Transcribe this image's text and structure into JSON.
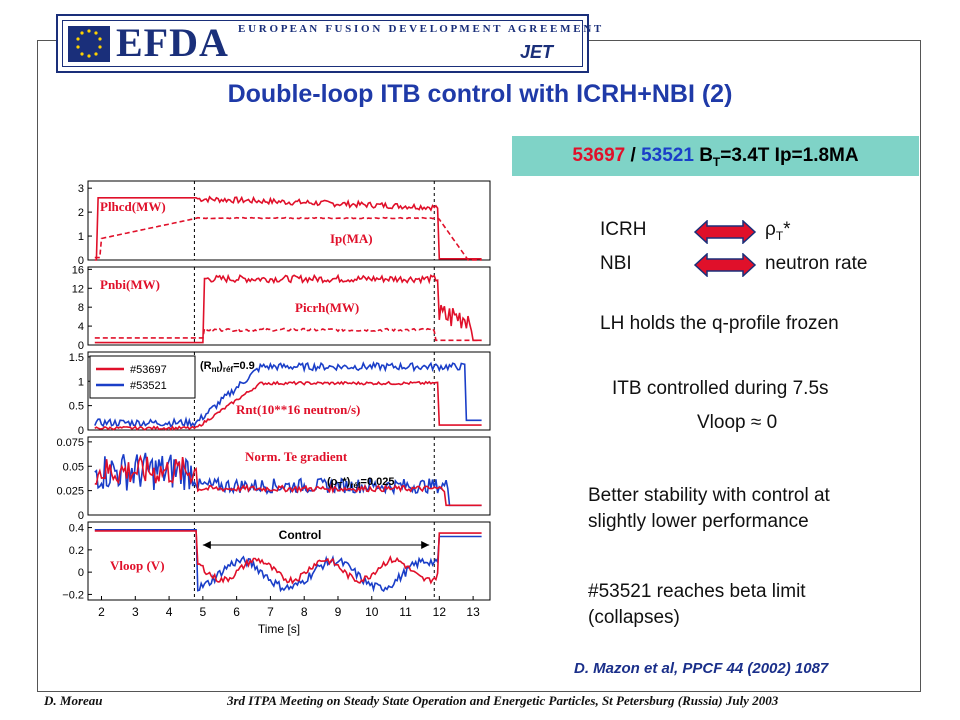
{
  "header": {
    "logo_text": "EFDA",
    "org_name": "E U R O P E A N   F U S I O N   D E V E L O P M E N T   A G R E E M E N T",
    "jet_logo": "JET"
  },
  "title": "Double-loop ITB control with ICRH+NBI (2)",
  "shot_box": {
    "shot1": "53697",
    "sep": " / ",
    "shot2": "53521",
    "rest_b": " B",
    "sub_t": "T",
    "rest_tail": "=3.4T Ip=1.8MA"
  },
  "controls": {
    "icrh": "ICRH",
    "rho_t": "ρ",
    "rho_t_sub": "T",
    "rho_t_star": "*",
    "nbi": "NBI",
    "neutron": "neutron rate",
    "lh": "LH holds the q-profile frozen",
    "itb": "ITB controlled during 7.5s",
    "vloop": "Vloop ≈ 0",
    "stability_1": "Better stability with control at",
    "stability_2": "slightly lower performance",
    "beta_1": "#53521 reaches beta limit",
    "beta_2": "(collapses)"
  },
  "citation": "D. Mazon et al, PPCF 44 (2002) 1087",
  "footer": {
    "author": "D. Moreau",
    "meeting": "3rd ITPA Meeting on Steady State Operation and Energetic Particles, St Petersburg (Russia) July 2003"
  },
  "colors": {
    "title": "#1f3aa8",
    "shot_box": "#7fd3c7",
    "red": "#e0102a",
    "blue": "#1a3ec8",
    "arrow": "#e0102a"
  },
  "chart_data": {
    "type": "line",
    "xlabel": "Time [s]",
    "x_ticks": [
      "2",
      "3",
      "4",
      "5",
      "6",
      "7",
      "8",
      "9",
      "10",
      "11",
      "12",
      "13"
    ],
    "xlim": [
      1.6,
      13.5
    ],
    "legend": [
      "#53697",
      "#53521"
    ],
    "annotation_rnt_ref": "(R",
    "annotation_rnt_sub": "nt",
    "annotation_rnt_tail": ")",
    "annotation_ref_sub": "réf",
    "annotation_rnt_val": "=0.9",
    "annotation_rho_ref": "(ρ",
    "annotation_rho_sub": "T",
    "annotation_rho_tail": "*)",
    "annotation_rho_val": "=0.025",
    "control_label": "Control",
    "panels": [
      {
        "labels": [
          "Plhcd(MW)",
          "Ip(MA)"
        ],
        "yticks": [
          "3",
          "2",
          "1",
          "0"
        ],
        "ylim": [
          0,
          3.3
        ]
      },
      {
        "labels": [
          "Pnbi(MW)",
          "Picrh(MW)"
        ],
        "yticks": [
          "16",
          "12",
          "8",
          "4",
          "0"
        ],
        "ylim": [
          0,
          16.5
        ]
      },
      {
        "labels": [
          "Rnt(10**16 neutron/s)"
        ],
        "yticks": [
          "1.5",
          "1",
          "0.5",
          "0"
        ],
        "ylim": [
          0,
          1.6
        ]
      },
      {
        "labels": [
          "Norm. Te gradient"
        ],
        "yticks": [
          "0.075",
          "0.05",
          "0.025",
          "0"
        ],
        "ylim": [
          0,
          0.08
        ]
      },
      {
        "labels": [
          "Vloop (V)"
        ],
        "yticks": [
          "0.4",
          "0.2",
          "0",
          "−0.2"
        ],
        "ylim": [
          -0.25,
          0.45
        ]
      }
    ],
    "series": [
      {
        "name": "#53697",
        "color": "red"
      },
      {
        "name": "#53521",
        "color": "blue"
      }
    ]
  }
}
